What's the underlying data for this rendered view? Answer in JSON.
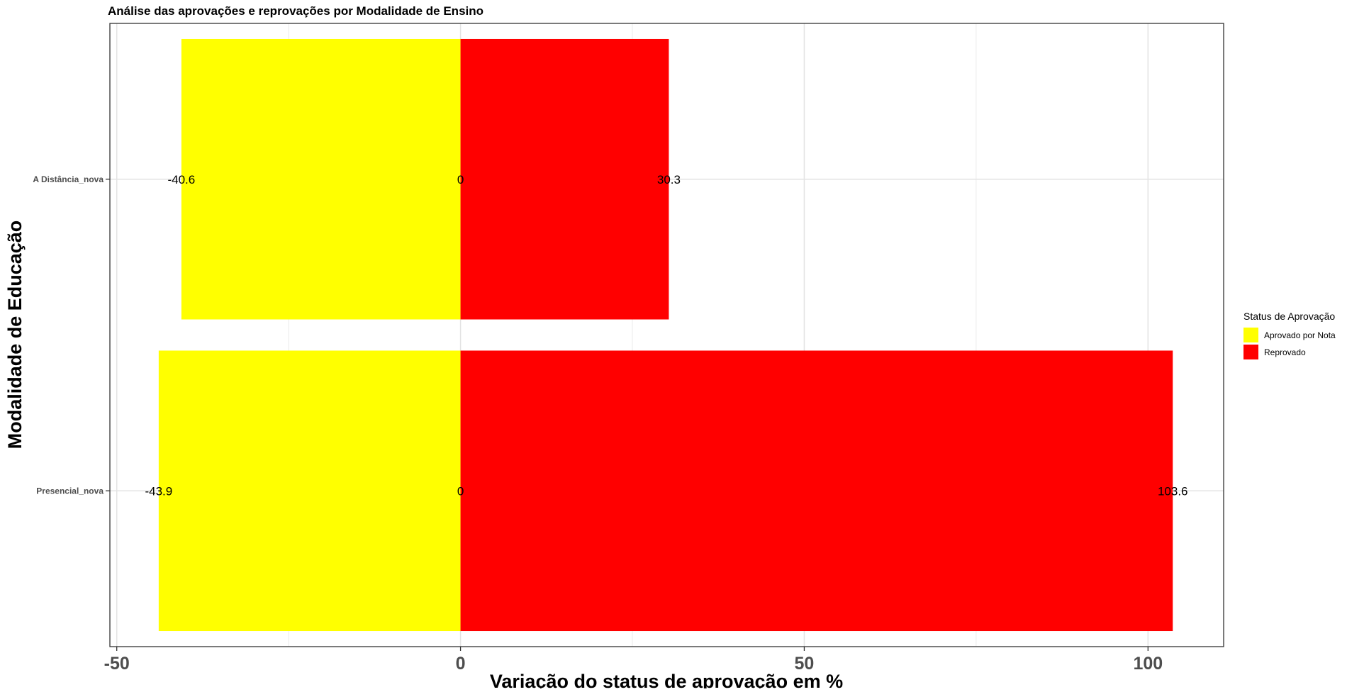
{
  "chart_data": {
    "type": "bar",
    "orientation": "horizontal",
    "title": "Análise das aprovações e reprovações por Modalidade de Ensino",
    "xlabel": "Variação do status de aprovação em %",
    "ylabel": "Modalidade de Educação",
    "xlim": [
      -51,
      111
    ],
    "x_ticks": [
      -50,
      0,
      50,
      100
    ],
    "x_tick_labels": [
      "-50",
      "0",
      "50",
      "100"
    ],
    "categories": [
      "A Distância_nova",
      "Presencial_nova"
    ],
    "series": [
      {
        "name": "Aprovado por Nota",
        "color": "#FFFF00",
        "values": [
          -40.6,
          -43.9
        ]
      },
      {
        "name": "Reprovado",
        "color": "#FF0000",
        "values": [
          30.3,
          103.6
        ]
      }
    ],
    "data_labels": [
      {
        "category": "A Distância_nova",
        "values": [
          -40.6,
          0,
          30.3
        ],
        "labels": [
          "-40.6",
          "0",
          "30.3"
        ]
      },
      {
        "category": "Presencial_nova",
        "values": [
          -43.9,
          0,
          103.6
        ],
        "labels": [
          "-43.9",
          "0",
          "103.6"
        ]
      }
    ],
    "legend": {
      "title": "Status de Aprovação",
      "position": "right",
      "items": [
        "Aprovado por Nota",
        "Reprovado"
      ]
    },
    "grid": true
  }
}
